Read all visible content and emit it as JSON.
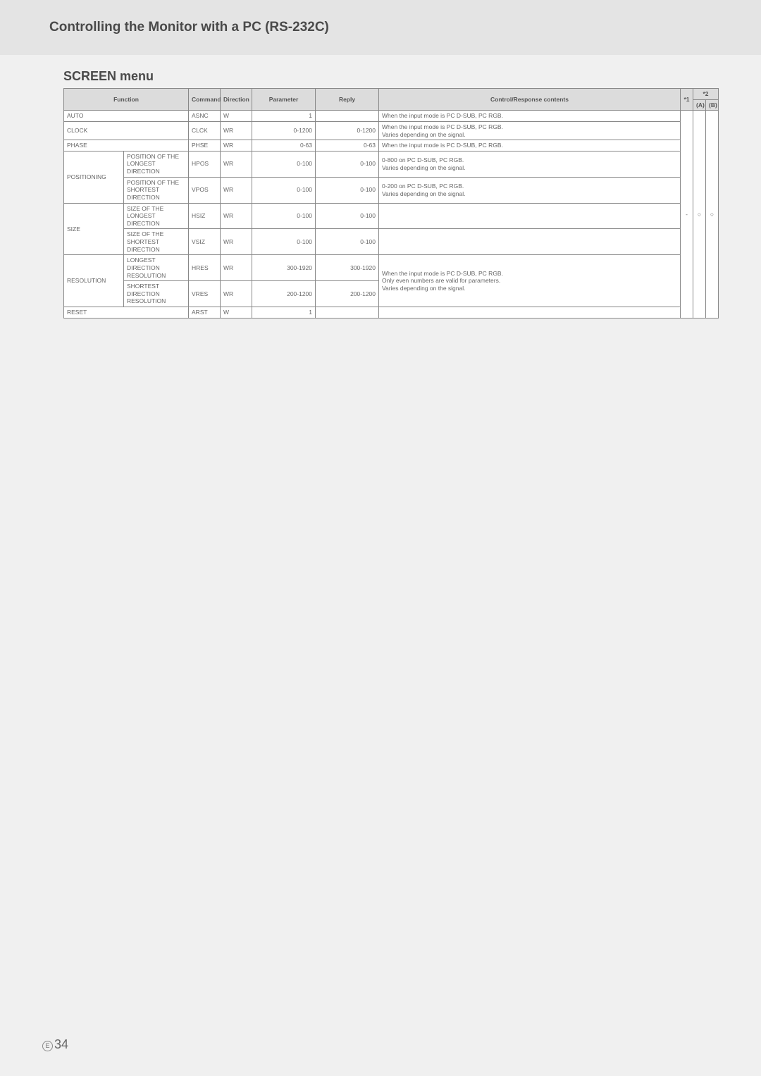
{
  "page": {
    "header": "Controlling the Monitor with a PC (RS-232C)",
    "section": "SCREEN menu",
    "footer_letter": "E",
    "footer_number": "34"
  },
  "table": {
    "headers": {
      "function": "Function",
      "command": "Command",
      "direction": "Direction",
      "parameter": "Parameter",
      "reply": "Reply",
      "contents": "Control/Response contents",
      "s1": "*1",
      "s2": "*2",
      "s2a": "(A)",
      "s2b": "(B)"
    },
    "star1_value": "-",
    "star2a_value": "○",
    "star2b_value": "○",
    "r_auto": {
      "f": "AUTO",
      "cmd": "ASNC",
      "dir": "W",
      "param": "1",
      "reply": "",
      "cont": "When the input mode is PC D-SUB, PC RGB."
    },
    "r_clock": {
      "f": "CLOCK",
      "cmd": "CLCK",
      "dir": "WR",
      "param": "0-1200",
      "reply": "0-1200",
      "cont": "When the input mode is PC D-SUB, PC RGB.\nVaries depending on the signal."
    },
    "r_phase": {
      "f": "PHASE",
      "cmd": "PHSE",
      "dir": "WR",
      "param": "0-63",
      "reply": "0-63",
      "cont": "When the input mode is PC D-SUB, PC RGB."
    },
    "r_pos": {
      "f": "POSITIONING"
    },
    "r_pos_h": {
      "sub": "POSITION OF THE LONGEST DIRECTION",
      "cmd": "HPOS",
      "dir": "WR",
      "param": "0-100",
      "reply": "0-100",
      "cont": "0-800 on PC D-SUB, PC RGB.\nVaries depending on the signal."
    },
    "r_pos_v": {
      "sub": "POSITION OF THE SHORTEST DIRECTION",
      "cmd": "VPOS",
      "dir": "WR",
      "param": "0-100",
      "reply": "0-100",
      "cont": "0-200 on PC D-SUB, PC RGB.\nVaries depending on the signal."
    },
    "r_size": {
      "f": "SIZE"
    },
    "r_size_h": {
      "sub": "SIZE OF THE LONGEST DIRECTION",
      "cmd": "HSIZ",
      "dir": "WR",
      "param": "0-100",
      "reply": "0-100",
      "cont": ""
    },
    "r_size_v": {
      "sub": "SIZE OF THE SHORTEST DIRECTION",
      "cmd": "VSIZ",
      "dir": "WR",
      "param": "0-100",
      "reply": "0-100",
      "cont": ""
    },
    "r_res": {
      "f": "RESOLUTION"
    },
    "r_res_h": {
      "sub": "LONGEST DIRECTION RESOLUTION",
      "cmd": "HRES",
      "dir": "WR",
      "param": "300-1920",
      "reply": "300-1920",
      "cont": "When the input mode is PC D-SUB, PC RGB.\nOnly even numbers are valid for parameters.\nVaries depending on the signal."
    },
    "r_res_v": {
      "sub": "SHORTEST DIRECTION RESOLUTION",
      "cmd": "VRES",
      "dir": "WR",
      "param": "200-1200",
      "reply": "200-1200",
      "cont": ""
    },
    "r_reset": {
      "f": "RESET",
      "cmd": "ARST",
      "dir": "W",
      "param": "1",
      "reply": "",
      "cont": ""
    }
  }
}
